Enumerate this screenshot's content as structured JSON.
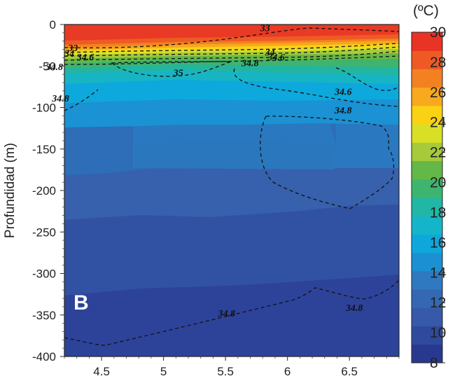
{
  "chart_data": {
    "type": "heatmap",
    "panel_label": "B",
    "ylabel": "Profundidad (m)",
    "xlabel": "",
    "xlim": [
      4.2,
      6.9
    ],
    "ylim": [
      -400,
      0
    ],
    "x_ticks": [
      4.5,
      5,
      5.5,
      6,
      6.5
    ],
    "x_tick_labels": [
      "4.5",
      "5",
      "5.5",
      "6",
      "6.5"
    ],
    "y_ticks": [
      0,
      -50,
      -100,
      -150,
      -200,
      -250,
      -300,
      -350,
      -400
    ],
    "y_tick_labels": [
      "0",
      "-50",
      "-100",
      "-150",
      "-200",
      "-250",
      "-300",
      "-350",
      "-400"
    ],
    "colorbar": {
      "unit_label": "(ºC)",
      "min": 8,
      "max": 30,
      "tick_labels": [
        "30",
        "28",
        "26",
        "24",
        "22",
        "20",
        "18",
        "16",
        "14",
        "12",
        "10",
        "8"
      ],
      "colors": [
        "#29388f",
        "#2f4a9c",
        "#3659a9",
        "#3568b2",
        "#2e79c0",
        "#1b90d2",
        "#0ea7dc",
        "#15b5c9",
        "#21b7a4",
        "#3eb56f",
        "#64b847",
        "#a6ca3a",
        "#d9df25",
        "#fbd114",
        "#f8a91d",
        "#f48121",
        "#ef5a24",
        "#e93325"
      ]
    },
    "temperature_field_note_c": [
      {
        "depth_m": 0,
        "temp_c": 29
      },
      {
        "depth_m": -50,
        "temp_c": 21
      },
      {
        "depth_m": -100,
        "temp_c": 16
      },
      {
        "depth_m": -150,
        "temp_c": 14
      },
      {
        "depth_m": -250,
        "temp_c": 12
      },
      {
        "depth_m": -350,
        "temp_c": 11
      },
      {
        "depth_m": -400,
        "temp_c": 10
      }
    ],
    "salinity_contour_labels": [
      {
        "text": "33",
        "x": 5.78,
        "depth_m": -8
      },
      {
        "text": "33",
        "x": 4.23,
        "depth_m": -32
      },
      {
        "text": "34",
        "x": 4.2,
        "depth_m": -39
      },
      {
        "text": "34.6",
        "x": 4.3,
        "depth_m": -43
      },
      {
        "text": "34.8",
        "x": 4.05,
        "depth_m": -55
      },
      {
        "text": "35",
        "x": 5.08,
        "depth_m": -62
      },
      {
        "text": "34",
        "x": 5.82,
        "depth_m": -37
      },
      {
        "text": "34.6",
        "x": 5.84,
        "depth_m": -43
      },
      {
        "text": "34.8",
        "x": 5.63,
        "depth_m": -50
      },
      {
        "text": "34.6",
        "x": 6.38,
        "depth_m": -85
      },
      {
        "text": "34.8",
        "x": 6.38,
        "depth_m": -107
      },
      {
        "text": "34.8",
        "x": 4.1,
        "depth_m": -93
      },
      {
        "text": "34.8",
        "x": 5.44,
        "depth_m": -352
      },
      {
        "text": "34.8",
        "x": 6.47,
        "depth_m": -345
      }
    ]
  }
}
